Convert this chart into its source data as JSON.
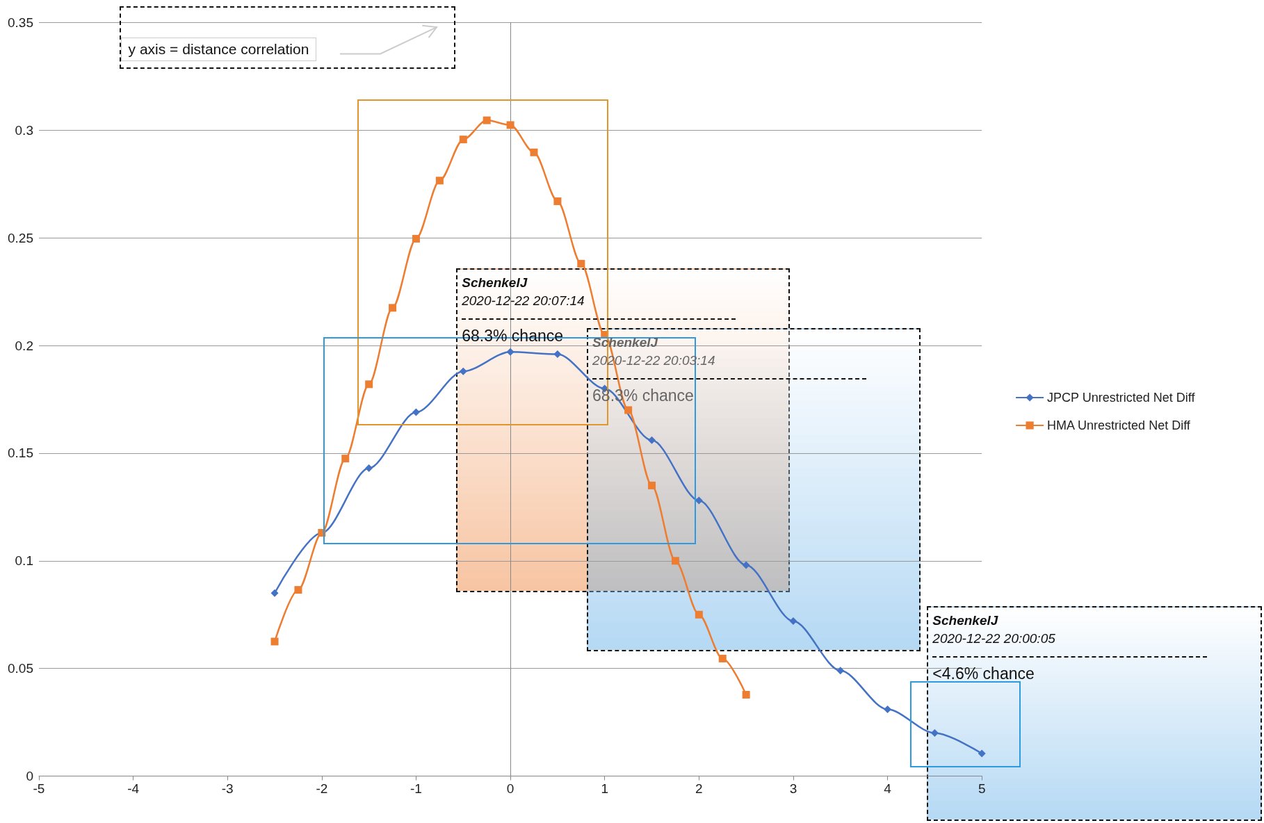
{
  "chart_data": {
    "type": "line",
    "xlim": [
      -5,
      5
    ],
    "xticks": [
      -5,
      -4,
      -3,
      -2,
      -1,
      0,
      1,
      2,
      3,
      4,
      5
    ],
    "ylim": [
      0,
      0.35
    ],
    "yticks": [
      0,
      0.05,
      0.1,
      0.15,
      0.2,
      0.25,
      0.3,
      0.35
    ],
    "grid": "y",
    "legend": "right",
    "annotations": [
      "y axis = distance correlation",
      "SchenkelJ",
      "2020-12-22 20:07:14",
      "68.3% chance",
      "SchenkelJ",
      "2020-12-22 20:03:14",
      "68.3% chance",
      "SchenkelJ",
      "2020-12-22 20:00:05",
      "<4.6% chance"
    ],
    "series": [
      {
        "name": "JPCP Unrestricted Net Diff",
        "color": "#4472c4",
        "marker": "diamond",
        "x": [
          -2.5,
          -2,
          -1.5,
          -1,
          -0.5,
          0,
          0.5,
          1,
          1.5,
          2,
          2.5,
          3,
          3.5,
          4,
          4.5,
          5
        ],
        "values": [
          0.085,
          0.113,
          0.143,
          0.169,
          0.188,
          0.197,
          0.196,
          0.18,
          0.156,
          0.128,
          0.098,
          0.072,
          0.049,
          0.031,
          0.02,
          0.0105
        ]
      },
      {
        "name": "HMA Unrestricted Net Diff",
        "color": "#ed7d31",
        "marker": "square",
        "x": [
          -2.5,
          -2.25,
          -2,
          -1.75,
          -1.5,
          -1.25,
          -1,
          -0.75,
          -0.5,
          -0.25,
          0,
          0.25,
          0.5,
          0.75,
          1,
          1.25,
          1.5,
          1.75,
          2,
          2.25,
          2.5
        ],
        "values": [
          0.0625,
          0.0865,
          0.113,
          0.1475,
          0.182,
          0.2175,
          0.2496,
          0.2766,
          0.2957,
          0.3046,
          0.3024,
          0.2897,
          0.267,
          0.238,
          0.205,
          0.17,
          0.135,
          0.1,
          0.075,
          0.0546,
          0.0378
        ]
      }
    ]
  }
}
